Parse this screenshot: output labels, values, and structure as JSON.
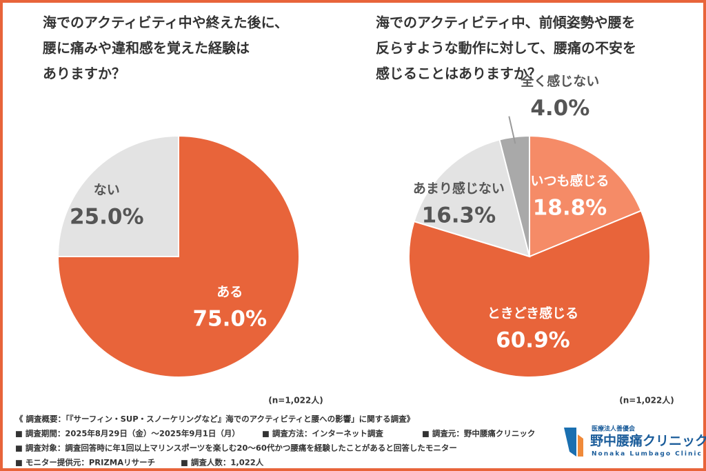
{
  "chart_data": [
    {
      "type": "pie",
      "title": [
        "海でのアクティビティ中や終えた後に、",
        "腰に痛みや違和感を覚えた経験は",
        "ありますか？"
      ],
      "categories": [
        "ある",
        "ない"
      ],
      "values": [
        75.0,
        25.0
      ],
      "value_labels": [
        "75.0%",
        "25.0%"
      ],
      "colors": [
        "#e8643a",
        "#e3e3e3"
      ],
      "note": "(n=1,022人)"
    },
    {
      "type": "pie",
      "title": [
        "海でのアクティビティ中、前傾姿勢や腰を",
        "反らすような動作に対して、腰痛の不安を",
        "感じることはありますか？"
      ],
      "categories": [
        "いつも感じる",
        "ときどき感じる",
        "あまり感じない",
        "全く感じない"
      ],
      "values": [
        18.8,
        60.9,
        16.3,
        4.0
      ],
      "value_labels": [
        "18.8%",
        "60.9%",
        "16.3%",
        "4.0%"
      ],
      "colors": [
        "#f58b67",
        "#e8643a",
        "#e3e3e3",
        "#a9a9a9"
      ],
      "note": "(n=1,022人)"
    }
  ],
  "footer": {
    "heading": "《 調査概要：「『サーフィン・SUP・スノーケリングなど』海でのアクティビティと腰への影響」に関する調査》",
    "period": "■ 調査期間：2025年8月29日（金）〜2025年9月1日（月）",
    "method": "■ 調査方法：インターネット調査",
    "source": "■ 調査元：野中腰痛クリニック",
    "target": "■ 調査対象：調査回答時に年1回以上マリンスポーツを楽しむ20〜60代かつ腰痛を経験したことがあると回答したモニター",
    "provider": "■ モニター提供元：PRIZMAリサーチ",
    "count": "■ 調査人数：1,022人"
  },
  "logo": {
    "org": "医療法人善優会",
    "name": "野中腰痛クリニック",
    "english": "Nonaka Lumbago Clinic"
  }
}
